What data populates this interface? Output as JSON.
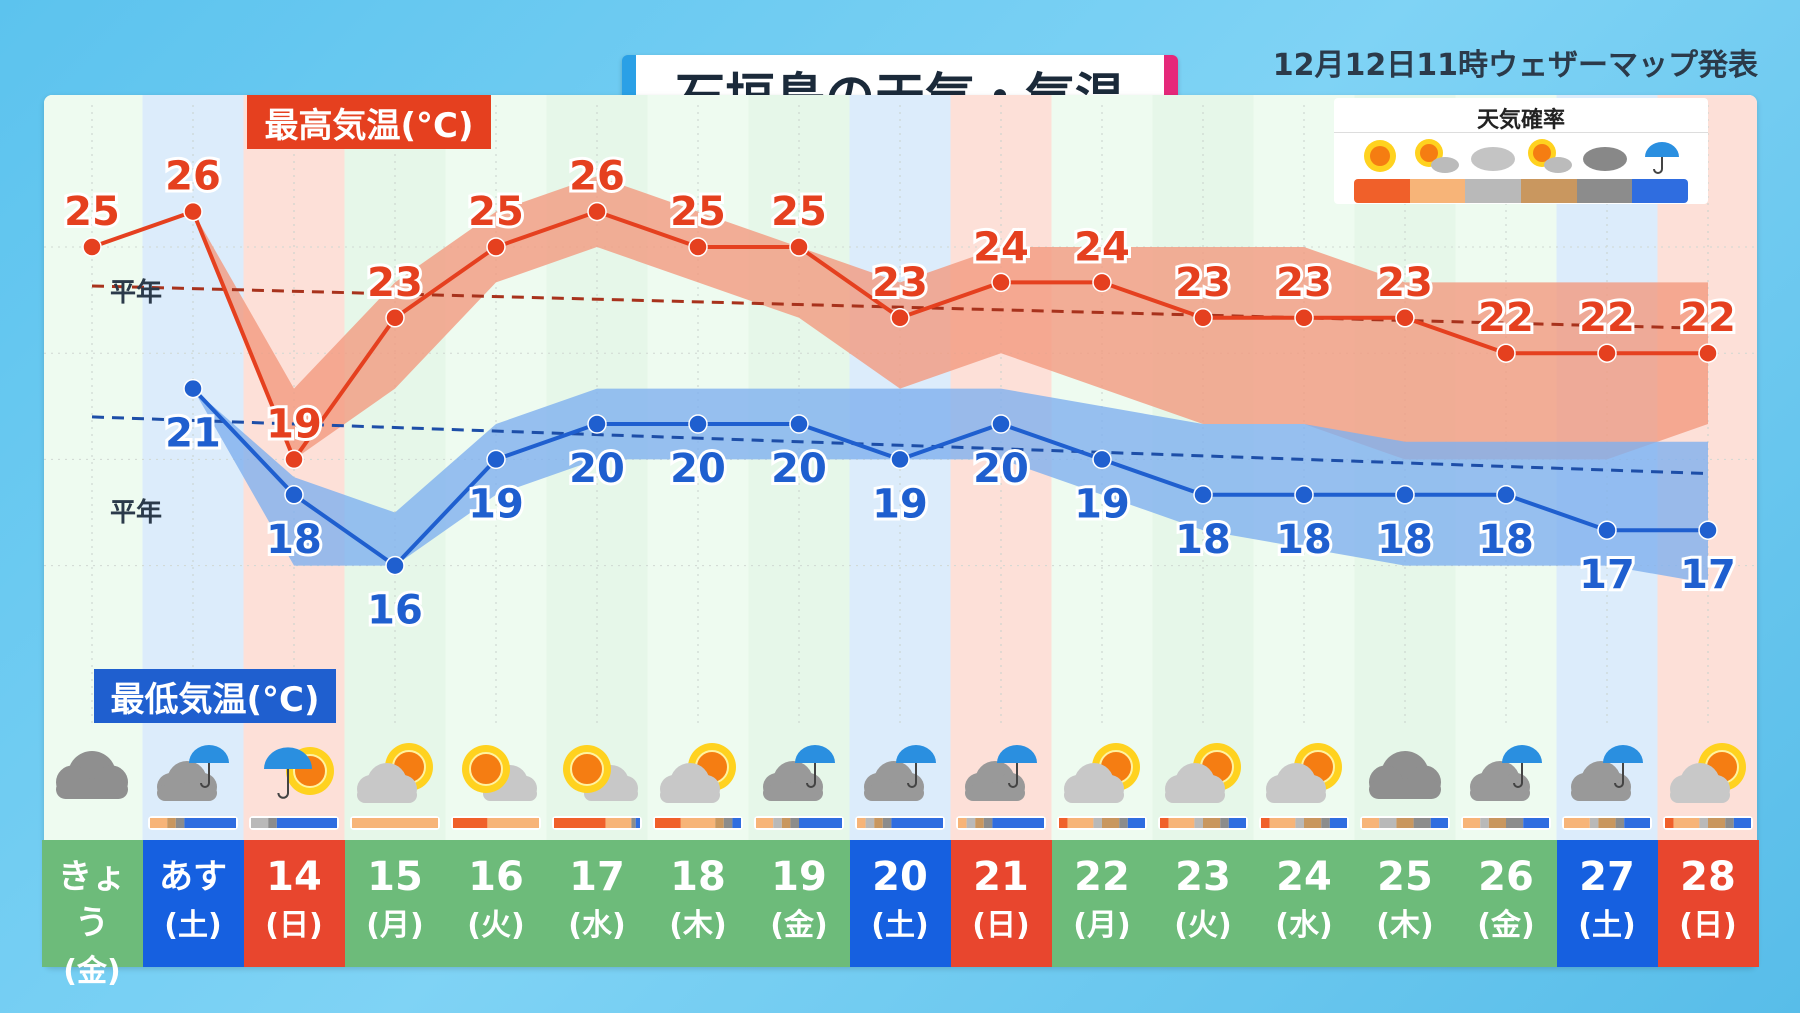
{
  "title": "石垣島の天気・気温",
  "issued": "12月12日11時ウェザーマップ発表",
  "legend": {
    "title": "天気確率",
    "items": [
      {
        "icon": "sun-icon",
        "color": "#f0602a"
      },
      {
        "icon": "sun-cloud-icon",
        "color": "#f7b478"
      },
      {
        "icon": "cloud-icon",
        "color": "#b9b9b9"
      },
      {
        "icon": "sun-cloud-icon",
        "color": "#c9975f"
      },
      {
        "icon": "dark-cloud-icon",
        "color": "#8c8c8c"
      },
      {
        "icon": "umbrella-icon",
        "color": "#2f6de0"
      }
    ]
  },
  "labels": {
    "max": "最高気温(°C)",
    "min": "最低気温(°C)",
    "normal_max": "平年",
    "normal_min": "平年"
  },
  "colors": {
    "max": "#e5401f",
    "min": "#1f5fcf",
    "max_band": "#f29a80",
    "min_band": "#7fb0ef",
    "weekday": "#6dbb7a",
    "saturday": "#1660e0",
    "sunday": "#e8462e"
  },
  "chart_data": {
    "type": "line",
    "categories": [
      "きょう",
      "あす",
      "14",
      "15",
      "16",
      "17",
      "18",
      "19",
      "20",
      "21",
      "22",
      "23",
      "24",
      "25",
      "26",
      "27",
      "28"
    ],
    "weekdays": [
      "(金)",
      "(土)",
      "(日)",
      "(月)",
      "(火)",
      "(水)",
      "(木)",
      "(金)",
      "(土)",
      "(日)",
      "(月)",
      "(火)",
      "(水)",
      "(木)",
      "(金)",
      "(土)",
      "(日)"
    ],
    "day_types": [
      "weekday",
      "saturday",
      "sunday",
      "weekday",
      "weekday",
      "weekday",
      "weekday",
      "weekday",
      "saturday",
      "sunday",
      "weekday",
      "weekday",
      "weekday",
      "weekday",
      "weekday",
      "saturday",
      "sunday"
    ],
    "series": [
      {
        "name": "最高気温(°C)",
        "values": [
          25,
          26,
          19,
          23,
          25,
          26,
          25,
          25,
          23,
          24,
          24,
          23,
          23,
          23,
          22,
          22,
          22
        ],
        "range": [
          null,
          [
            26,
            26
          ],
          [
            19,
            21
          ],
          [
            21,
            24
          ],
          [
            24,
            26
          ],
          [
            25,
            27
          ],
          [
            24,
            26
          ],
          [
            23,
            25
          ],
          [
            21,
            24
          ],
          [
            22,
            25
          ],
          [
            21,
            25
          ],
          [
            20,
            25
          ],
          [
            20,
            25
          ],
          [
            19,
            24
          ],
          [
            19,
            24
          ],
          [
            19,
            24
          ],
          [
            20,
            24
          ]
        ]
      },
      {
        "name": "最低気温(°C)",
        "values": [
          null,
          21,
          18,
          16,
          19,
          20,
          20,
          20,
          19,
          20,
          19,
          18,
          18,
          18,
          18,
          17,
          17
        ],
        "range": [
          null,
          [
            21,
            21
          ],
          [
            16,
            18.5
          ],
          [
            16,
            17.5
          ],
          [
            18,
            20
          ],
          [
            19,
            21
          ],
          [
            19,
            21
          ],
          [
            19,
            21
          ],
          [
            19,
            21
          ],
          [
            19,
            21
          ],
          [
            18,
            20.5
          ],
          [
            17,
            20
          ],
          [
            16.5,
            20
          ],
          [
            16,
            19.5
          ],
          [
            16,
            19.5
          ],
          [
            16,
            19.5
          ],
          [
            15.5,
            19.5
          ]
        ]
      }
    ],
    "normal_max": [
      23.9,
      22.7
    ],
    "normal_min": [
      20.2,
      18.6
    ],
    "weather": [
      "cloud",
      "cloud-rain",
      "rain-sun",
      "cloud-sun",
      "sun-cloud",
      "sun-cloud",
      "cloud-sun",
      "cloud-rain",
      "cloud-rain",
      "cloud-rain",
      "cloud-sun",
      "cloud-sun",
      "cloud-sun",
      "cloud",
      "cloud-rain",
      "cloud-rain",
      "cloud-sun"
    ],
    "probability": [
      null,
      [
        0,
        20,
        0,
        10,
        10,
        60
      ],
      [
        0,
        0,
        20,
        0,
        10,
        70
      ],
      [
        0,
        100,
        0,
        0,
        0,
        0
      ],
      [
        40,
        60,
        0,
        0,
        0,
        0
      ],
      [
        60,
        30,
        0,
        0,
        5,
        5
      ],
      [
        30,
        40,
        0,
        10,
        10,
        10
      ],
      [
        0,
        20,
        10,
        10,
        10,
        50
      ],
      [
        0,
        10,
        10,
        10,
        10,
        60
      ],
      [
        0,
        10,
        10,
        10,
        10,
        60
      ],
      [
        10,
        30,
        10,
        20,
        10,
        20
      ],
      [
        10,
        30,
        10,
        20,
        10,
        20
      ],
      [
        10,
        30,
        10,
        20,
        10,
        20
      ],
      [
        0,
        20,
        20,
        20,
        20,
        20
      ],
      [
        0,
        20,
        10,
        20,
        20,
        30
      ],
      [
        0,
        30,
        10,
        20,
        10,
        30
      ],
      [
        10,
        30,
        10,
        20,
        10,
        20
      ]
    ]
  }
}
